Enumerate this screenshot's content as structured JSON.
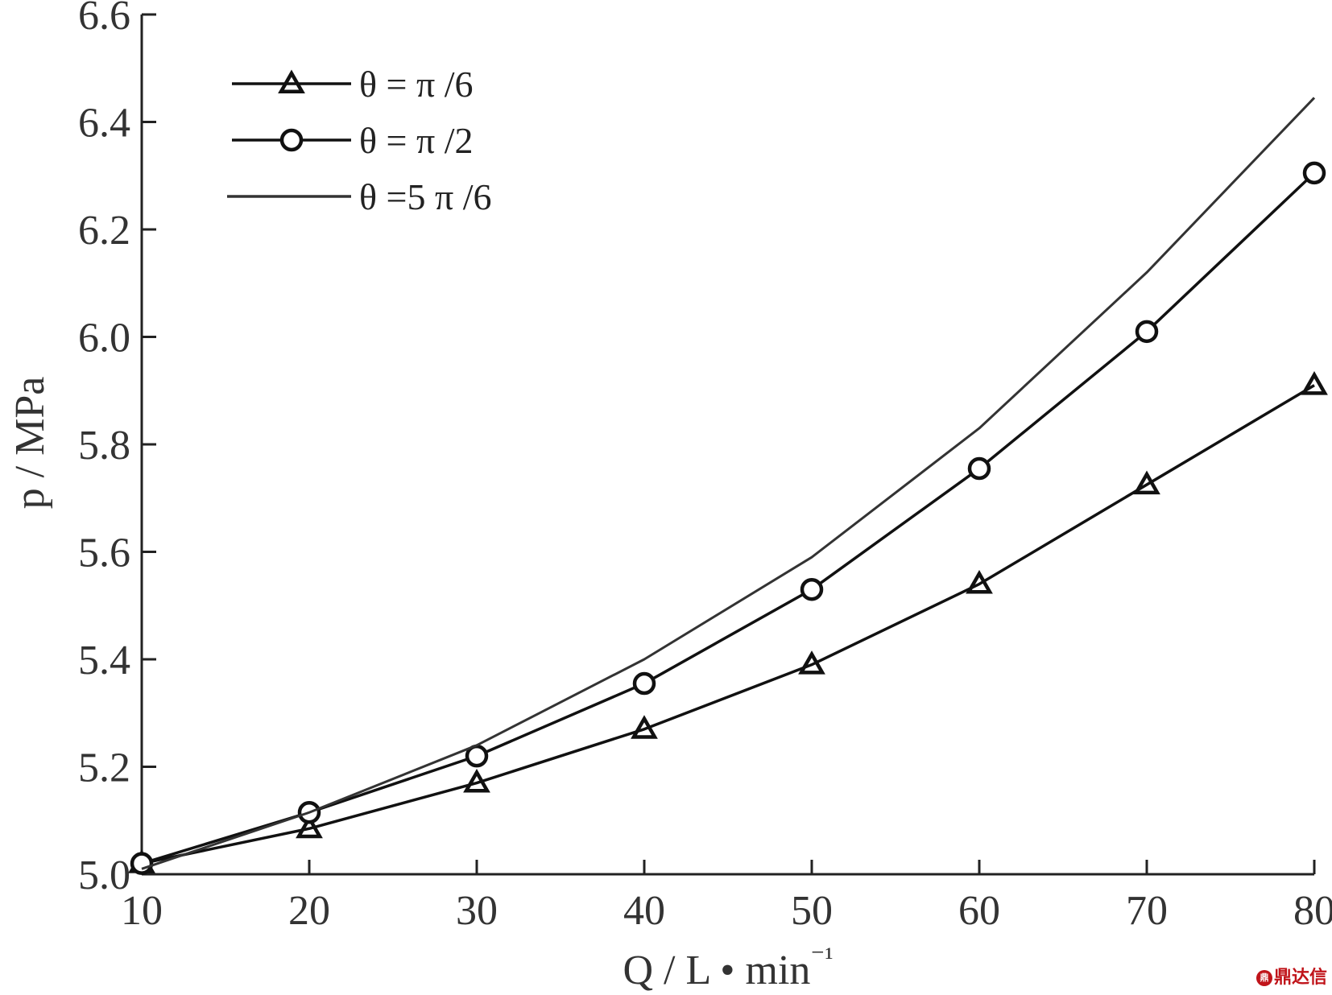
{
  "chart_data": {
    "type": "line",
    "xlabel": "Q / L • min⁻¹",
    "ylabel": "p / MPa",
    "xlim": [
      10,
      80
    ],
    "ylim": [
      5.0,
      6.6
    ],
    "xticks": [
      "10",
      "20",
      "30",
      "40",
      "50",
      "60",
      "70",
      "80"
    ],
    "yticks": [
      "5.0",
      "5.2",
      "5.4",
      "5.6",
      "5.8",
      "6.0",
      "6.2",
      "6.4",
      "6.6"
    ],
    "grid": false,
    "legend_position": "top-left",
    "x": [
      10,
      20,
      30,
      40,
      50,
      60,
      70,
      80
    ],
    "series": [
      {
        "name": "θ = π /6",
        "marker": "triangle",
        "color": "#111111",
        "values": [
          5.02,
          5.085,
          5.17,
          5.27,
          5.39,
          5.54,
          5.725,
          5.91
        ]
      },
      {
        "name": "θ = π /2",
        "marker": "circle",
        "color": "#111111",
        "values": [
          5.02,
          5.115,
          5.22,
          5.355,
          5.53,
          5.755,
          6.01,
          6.305
        ]
      },
      {
        "name": "θ =5 π /6",
        "marker": "none",
        "color": "#333333",
        "values": [
          5.01,
          5.115,
          5.24,
          5.4,
          5.59,
          5.83,
          6.12,
          6.445
        ]
      }
    ]
  },
  "watermark": {
    "logo": "鼎",
    "text": "鼎达信"
  }
}
